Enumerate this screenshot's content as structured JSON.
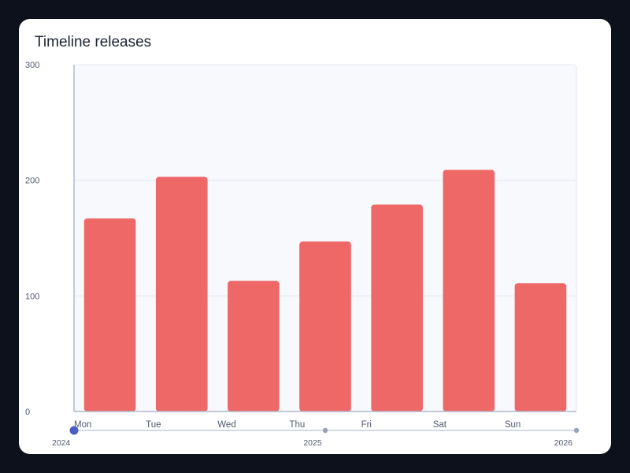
{
  "chart_data": {
    "type": "bar",
    "title": "Timeline releases",
    "categories": [
      "Mon",
      "Tue",
      "Wed",
      "Thu",
      "Fri",
      "Sat",
      "Sun"
    ],
    "values": [
      167,
      203,
      113,
      147,
      179,
      209,
      111
    ],
    "ylim": [
      0,
      300
    ],
    "yticks": [
      0,
      100,
      200,
      300
    ],
    "grid": true,
    "bar_color": "#ef6868",
    "timeline": {
      "labels": [
        "2024",
        "2025",
        "2026"
      ],
      "selected": "2024"
    }
  }
}
